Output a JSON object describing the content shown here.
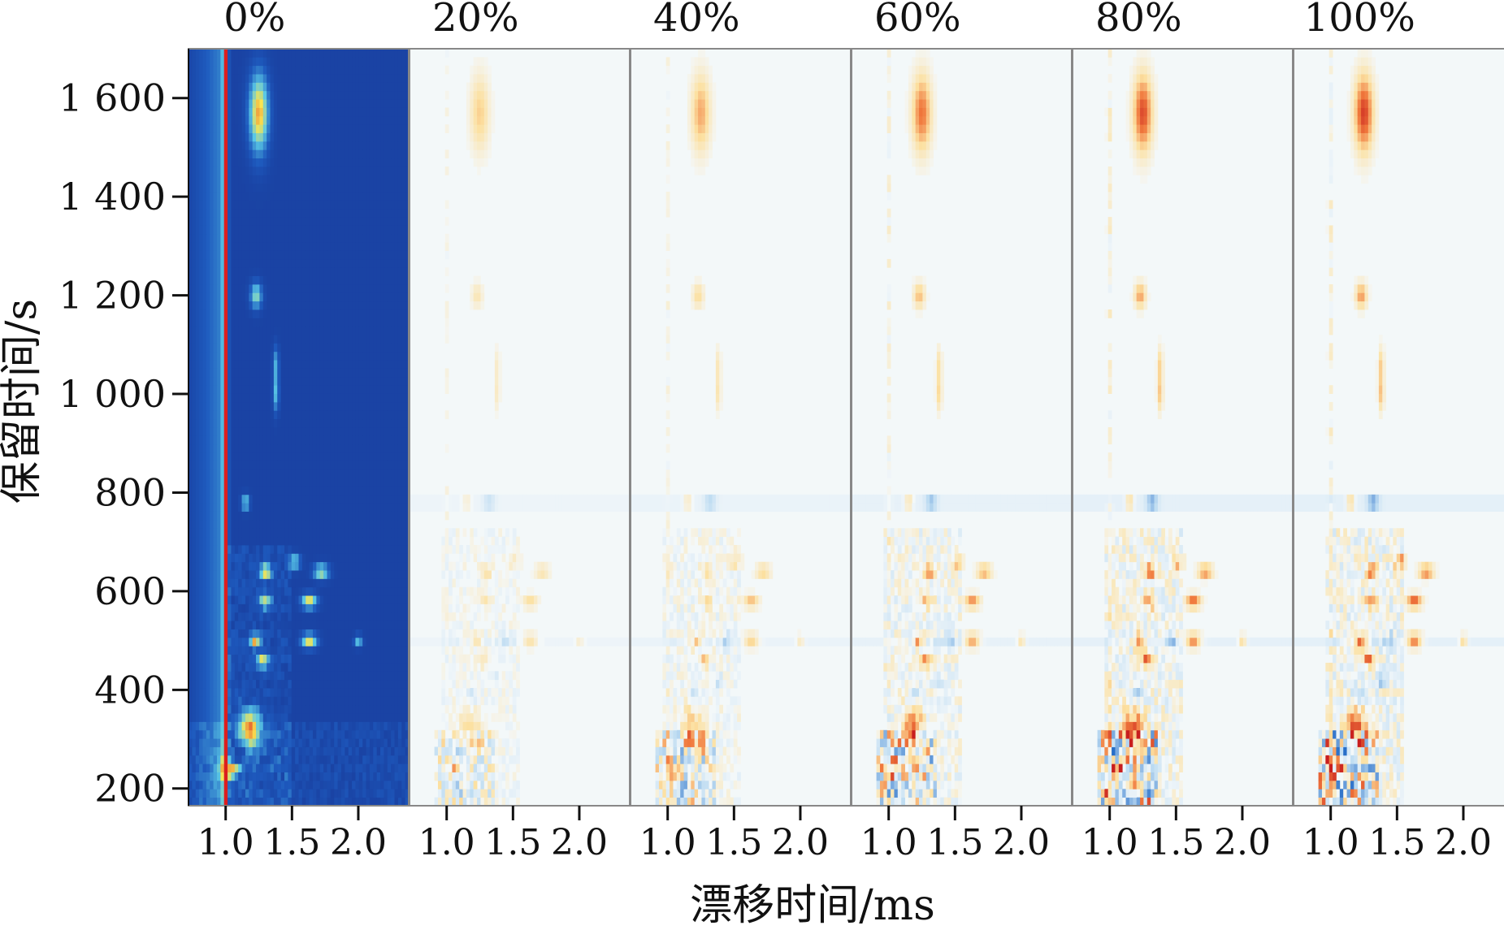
{
  "chart_data": {
    "type": "heatmap",
    "xlabel": "漂移时间/ms",
    "ylabel": "保留时间/s",
    "panels": [
      {
        "label": "0%",
        "mode": "topographic"
      },
      {
        "label": "20%",
        "mode": "difference",
        "strength": 0.45
      },
      {
        "label": "40%",
        "mode": "difference",
        "strength": 0.6
      },
      {
        "label": "60%",
        "mode": "difference",
        "strength": 0.8
      },
      {
        "label": "80%",
        "mode": "difference",
        "strength": 0.95
      },
      {
        "label": "100%",
        "mode": "difference",
        "strength": 1.0
      }
    ],
    "x_ticks": [
      {
        "value": 1.0,
        "label": "1.0"
      },
      {
        "value": 1.5,
        "label": "1.5"
      },
      {
        "value": 2.0,
        "label": "2.0"
      }
    ],
    "xlim": [
      0.72,
      2.38
    ],
    "y_ticks": [
      {
        "value": 200,
        "label": "200"
      },
      {
        "value": 400,
        "label": "400"
      },
      {
        "value": 600,
        "label": "600"
      },
      {
        "value": 800,
        "label": "800"
      },
      {
        "value": 1000,
        "label": "1 000"
      },
      {
        "value": 1200,
        "label": "1 200"
      },
      {
        "value": 1400,
        "label": "1 400"
      },
      {
        "value": 1600,
        "label": "1 600"
      }
    ],
    "ylim": [
      165,
      1700
    ],
    "reactant_ion_peak_drift_ms": 1.0,
    "peaks": [
      {
        "x": 1.25,
        "y": 1570,
        "w": 0.05,
        "h": 55,
        "v": 0.9
      },
      {
        "x": 1.23,
        "y": 1200,
        "w": 0.03,
        "h": 18,
        "v": 0.6
      },
      {
        "x": 1.38,
        "y": 1000,
        "w": 0.015,
        "h": 25,
        "v": 0.45
      },
      {
        "x": 1.38,
        "y": 1060,
        "w": 0.015,
        "h": 25,
        "v": 0.4
      },
      {
        "x": 1.32,
        "y": 780,
        "w": 0.03,
        "h": 10,
        "v": -0.7
      },
      {
        "x": 1.15,
        "y": 780,
        "w": 0.02,
        "h": 10,
        "v": 0.6
      },
      {
        "x": 1.52,
        "y": 660,
        "w": 0.03,
        "h": 10,
        "v": 0.6
      },
      {
        "x": 1.3,
        "y": 640,
        "w": 0.03,
        "h": 10,
        "v": 0.8
      },
      {
        "x": 1.72,
        "y": 640,
        "w": 0.04,
        "h": 10,
        "v": 0.7
      },
      {
        "x": 1.3,
        "y": 580,
        "w": 0.03,
        "h": 10,
        "v": 0.7
      },
      {
        "x": 1.63,
        "y": 580,
        "w": 0.04,
        "h": 10,
        "v": 0.8
      },
      {
        "x": 1.22,
        "y": 500,
        "w": 0.03,
        "h": 10,
        "v": 0.8
      },
      {
        "x": 1.45,
        "y": 500,
        "w": 0.03,
        "h": 10,
        "v": -0.6
      },
      {
        "x": 1.63,
        "y": 500,
        "w": 0.04,
        "h": 10,
        "v": 0.8
      },
      {
        "x": 2.0,
        "y": 500,
        "w": 0.02,
        "h": 8,
        "v": 0.5
      },
      {
        "x": 1.28,
        "y": 460,
        "w": 0.03,
        "h": 10,
        "v": 0.7
      },
      {
        "x": 1.38,
        "y": 420,
        "w": 0.02,
        "h": 8,
        "v": -0.6
      },
      {
        "x": 1.2,
        "y": 390,
        "w": 0.03,
        "h": 10,
        "v": -0.5
      },
      {
        "x": 1.18,
        "y": 320,
        "w": 0.06,
        "h": 30,
        "v": 0.8
      },
      {
        "x": 1.08,
        "y": 270,
        "w": 0.05,
        "h": 14,
        "v": -0.8
      },
      {
        "x": 1.05,
        "y": 240,
        "w": 0.06,
        "h": 20,
        "v": 0.8
      },
      {
        "x": 1.1,
        "y": 210,
        "w": 0.05,
        "h": 16,
        "v": -0.6
      }
    ]
  }
}
